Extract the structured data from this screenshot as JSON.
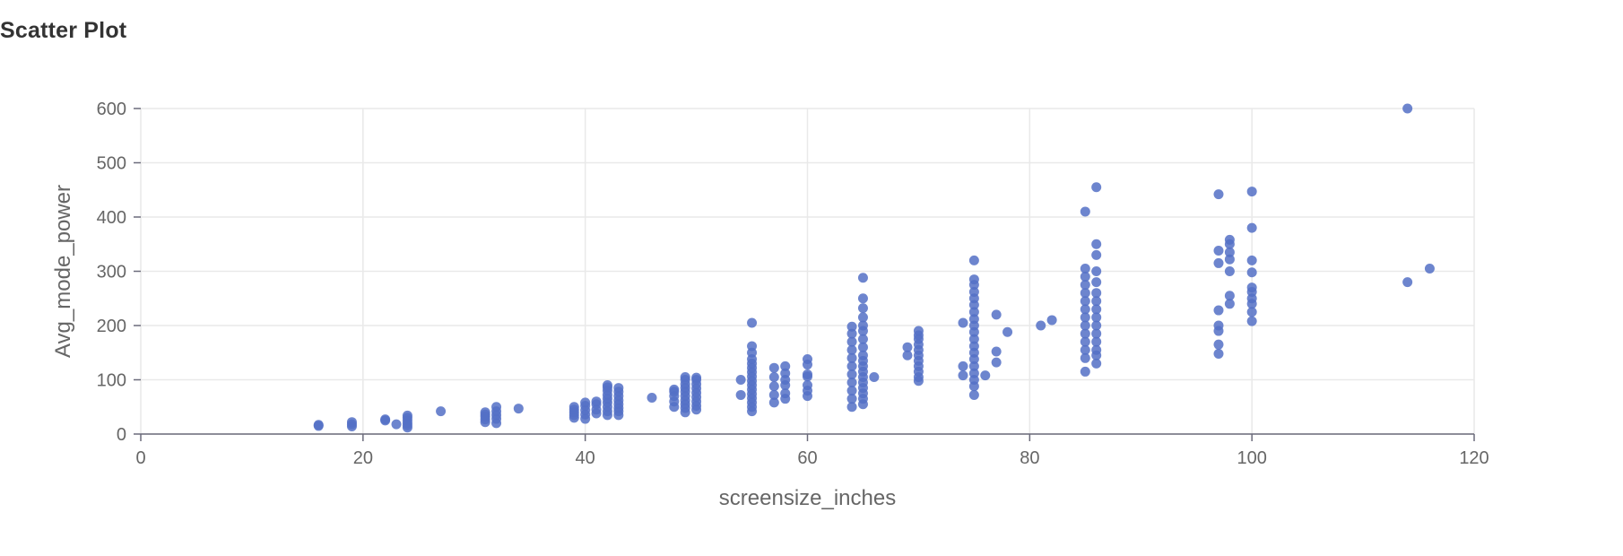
{
  "panel": {
    "title": "Scatter Plot"
  },
  "colors": {
    "point": "#5470c6",
    "grid": "#e9e9e9",
    "axis": "#6b6b7b",
    "text": "#666666",
    "title": "#333333"
  },
  "chart_data": {
    "type": "scatter",
    "title": "Scatter Plot",
    "xlabel": "screensize_inches",
    "ylabel": "Avg_mode_power",
    "xlim": [
      0,
      120
    ],
    "ylim": [
      0,
      600
    ],
    "x_ticks": [
      0,
      20,
      40,
      60,
      80,
      100,
      120
    ],
    "y_ticks": [
      0,
      100,
      200,
      300,
      400,
      500,
      600
    ],
    "grid": true,
    "series": [
      {
        "name": "Avg_mode_power",
        "points": [
          [
            16,
            15
          ],
          [
            16,
            17
          ],
          [
            19,
            14
          ],
          [
            19,
            18
          ],
          [
            19,
            22
          ],
          [
            22,
            25
          ],
          [
            22,
            27
          ],
          [
            23,
            18
          ],
          [
            24,
            12
          ],
          [
            24,
            16
          ],
          [
            24,
            20
          ],
          [
            24,
            25
          ],
          [
            24,
            30
          ],
          [
            24,
            34
          ],
          [
            27,
            42
          ],
          [
            31,
            22
          ],
          [
            31,
            27
          ],
          [
            31,
            32
          ],
          [
            31,
            36
          ],
          [
            31,
            40
          ],
          [
            32,
            20
          ],
          [
            32,
            28
          ],
          [
            32,
            35
          ],
          [
            32,
            42
          ],
          [
            32,
            50
          ],
          [
            34,
            47
          ],
          [
            39,
            30
          ],
          [
            39,
            35
          ],
          [
            39,
            40
          ],
          [
            39,
            45
          ],
          [
            39,
            50
          ],
          [
            40,
            28
          ],
          [
            40,
            36
          ],
          [
            40,
            44
          ],
          [
            40,
            52
          ],
          [
            40,
            58
          ],
          [
            41,
            38
          ],
          [
            41,
            45
          ],
          [
            41,
            55
          ],
          [
            41,
            60
          ],
          [
            42,
            35
          ],
          [
            42,
            42
          ],
          [
            42,
            50
          ],
          [
            42,
            58
          ],
          [
            42,
            65
          ],
          [
            42,
            72
          ],
          [
            42,
            80
          ],
          [
            42,
            86
          ],
          [
            42,
            90
          ],
          [
            43,
            35
          ],
          [
            43,
            42
          ],
          [
            43,
            48
          ],
          [
            43,
            55
          ],
          [
            43,
            62
          ],
          [
            43,
            70
          ],
          [
            43,
            78
          ],
          [
            43,
            85
          ],
          [
            46,
            67
          ],
          [
            48,
            50
          ],
          [
            48,
            60
          ],
          [
            48,
            70
          ],
          [
            48,
            78
          ],
          [
            48,
            82
          ],
          [
            49,
            40
          ],
          [
            49,
            48
          ],
          [
            49,
            55
          ],
          [
            49,
            62
          ],
          [
            49,
            70
          ],
          [
            49,
            78
          ],
          [
            49,
            85
          ],
          [
            49,
            92
          ],
          [
            49,
            100
          ],
          [
            49,
            105
          ],
          [
            50,
            45
          ],
          [
            50,
            52
          ],
          [
            50,
            60
          ],
          [
            50,
            68
          ],
          [
            50,
            76
          ],
          [
            50,
            84
          ],
          [
            50,
            92
          ],
          [
            50,
            100
          ],
          [
            50,
            104
          ],
          [
            54,
            72
          ],
          [
            54,
            100
          ],
          [
            55,
            42
          ],
          [
            55,
            50
          ],
          [
            55,
            58
          ],
          [
            55,
            66
          ],
          [
            55,
            74
          ],
          [
            55,
            82
          ],
          [
            55,
            90
          ],
          [
            55,
            98
          ],
          [
            55,
            106
          ],
          [
            55,
            114
          ],
          [
            55,
            122
          ],
          [
            55,
            130
          ],
          [
            55,
            138
          ],
          [
            55,
            150
          ],
          [
            55,
            162
          ],
          [
            55,
            205
          ],
          [
            57,
            58
          ],
          [
            57,
            72
          ],
          [
            57,
            88
          ],
          [
            57,
            105
          ],
          [
            57,
            122
          ],
          [
            58,
            65
          ],
          [
            58,
            75
          ],
          [
            58,
            90
          ],
          [
            58,
            100
          ],
          [
            58,
            112
          ],
          [
            58,
            125
          ],
          [
            60,
            70
          ],
          [
            60,
            80
          ],
          [
            60,
            90
          ],
          [
            60,
            106
          ],
          [
            60,
            110
          ],
          [
            60,
            128
          ],
          [
            60,
            138
          ],
          [
            64,
            50
          ],
          [
            64,
            65
          ],
          [
            64,
            80
          ],
          [
            64,
            95
          ],
          [
            64,
            110
          ],
          [
            64,
            125
          ],
          [
            64,
            140
          ],
          [
            64,
            155
          ],
          [
            64,
            170
          ],
          [
            64,
            185
          ],
          [
            64,
            198
          ],
          [
            65,
            55
          ],
          [
            65,
            65
          ],
          [
            65,
            75
          ],
          [
            65,
            85
          ],
          [
            65,
            95
          ],
          [
            65,
            105
          ],
          [
            65,
            115
          ],
          [
            65,
            125
          ],
          [
            65,
            135
          ],
          [
            65,
            145
          ],
          [
            65,
            160
          ],
          [
            65,
            175
          ],
          [
            65,
            190
          ],
          [
            65,
            200
          ],
          [
            65,
            215
          ],
          [
            65,
            232
          ],
          [
            65,
            250
          ],
          [
            65,
            288
          ],
          [
            66,
            105
          ],
          [
            69,
            145
          ],
          [
            69,
            160
          ],
          [
            70,
            98
          ],
          [
            70,
            105
          ],
          [
            70,
            115
          ],
          [
            70,
            125
          ],
          [
            70,
            135
          ],
          [
            70,
            145
          ],
          [
            70,
            155
          ],
          [
            70,
            165
          ],
          [
            70,
            175
          ],
          [
            70,
            182
          ],
          [
            70,
            190
          ],
          [
            74,
            108
          ],
          [
            74,
            125
          ],
          [
            74,
            205
          ],
          [
            75,
            72
          ],
          [
            75,
            88
          ],
          [
            75,
            100
          ],
          [
            75,
            112
          ],
          [
            75,
            125
          ],
          [
            75,
            138
          ],
          [
            75,
            150
          ],
          [
            75,
            162
          ],
          [
            75,
            175
          ],
          [
            75,
            188
          ],
          [
            75,
            200
          ],
          [
            75,
            212
          ],
          [
            75,
            225
          ],
          [
            75,
            238
          ],
          [
            75,
            250
          ],
          [
            75,
            262
          ],
          [
            75,
            275
          ],
          [
            75,
            285
          ],
          [
            75,
            320
          ],
          [
            76,
            108
          ],
          [
            77,
            132
          ],
          [
            77,
            152
          ],
          [
            77,
            220
          ],
          [
            78,
            188
          ],
          [
            81,
            200
          ],
          [
            82,
            210
          ],
          [
            85,
            115
          ],
          [
            85,
            140
          ],
          [
            85,
            155
          ],
          [
            85,
            170
          ],
          [
            85,
            185
          ],
          [
            85,
            200
          ],
          [
            85,
            215
          ],
          [
            85,
            230
          ],
          [
            85,
            245
          ],
          [
            85,
            260
          ],
          [
            85,
            275
          ],
          [
            85,
            290
          ],
          [
            85,
            305
          ],
          [
            85,
            410
          ],
          [
            86,
            130
          ],
          [
            86,
            145
          ],
          [
            86,
            155
          ],
          [
            86,
            170
          ],
          [
            86,
            185
          ],
          [
            86,
            200
          ],
          [
            86,
            215
          ],
          [
            86,
            230
          ],
          [
            86,
            245
          ],
          [
            86,
            260
          ],
          [
            86,
            280
          ],
          [
            86,
            300
          ],
          [
            86,
            330
          ],
          [
            86,
            350
          ],
          [
            86,
            455
          ],
          [
            97,
            148
          ],
          [
            97,
            165
          ],
          [
            97,
            190
          ],
          [
            97,
            200
          ],
          [
            97,
            228
          ],
          [
            97,
            315
          ],
          [
            97,
            338
          ],
          [
            97,
            442
          ],
          [
            98,
            240
          ],
          [
            98,
            255
          ],
          [
            98,
            300
          ],
          [
            98,
            322
          ],
          [
            98,
            335
          ],
          [
            98,
            350
          ],
          [
            98,
            358
          ],
          [
            100,
            208
          ],
          [
            100,
            225
          ],
          [
            100,
            240
          ],
          [
            100,
            250
          ],
          [
            100,
            262
          ],
          [
            100,
            270
          ],
          [
            100,
            298
          ],
          [
            100,
            320
          ],
          [
            100,
            380
          ],
          [
            100,
            447
          ],
          [
            114,
            280
          ],
          [
            114,
            600
          ],
          [
            116,
            305
          ]
        ]
      }
    ]
  }
}
